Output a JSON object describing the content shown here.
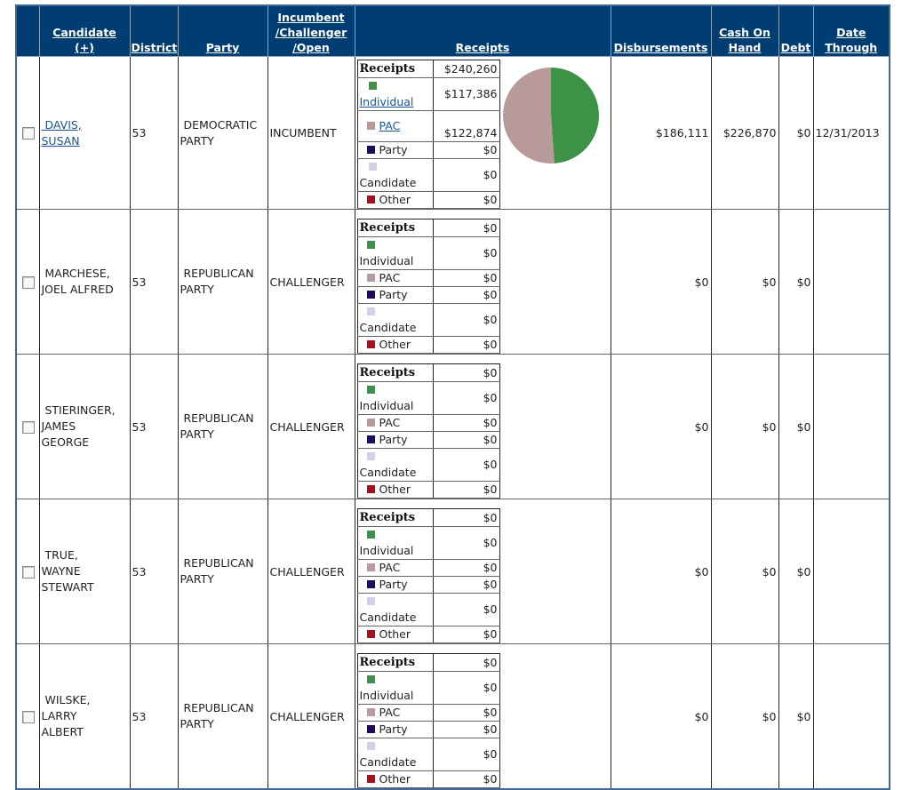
{
  "headers": {
    "select": "",
    "candidate": [
      "Candidate",
      "(+)"
    ],
    "district": "District",
    "party": "Party",
    "status": [
      "Incumbent",
      "/Challenger",
      "/Open"
    ],
    "receipts": "Receipts",
    "disbursements": "Disbursements",
    "cash_on_hand": [
      "Cash On",
      "Hand"
    ],
    "debt": "Debt",
    "date_through": [
      "Date",
      "Through"
    ]
  },
  "legend_colors": {
    "individual": "#3d9248",
    "pac": "#b89a9a",
    "party": "#1f0a5e",
    "candidate": "#d2d0e8",
    "other": "#a80e1c"
  },
  "rows": [
    {
      "name_line1": "DAVIS,",
      "name_line2": "SUSAN",
      "name_line3": "",
      "is_link": true,
      "district": "53",
      "party_line1": "DEMOCRATIC",
      "party_line2": "PARTY",
      "status": "INCUMBENT",
      "receipts_label": "Receipts",
      "receipts_total": "$240,260",
      "individual_label": "Individual",
      "individual": "$117,386",
      "pac_label": "PAC",
      "pac": "$122,874",
      "party_label": "Party",
      "party_amt": "$0",
      "candidate_label": "Candidate",
      "candidate_amt": "$0",
      "other_label": "Other",
      "other_amt": "$0",
      "disbursements": "$186,111",
      "cash_on_hand": "$226,870",
      "debt": "$0",
      "date_through": "12/31/2013",
      "pie": {
        "individual": 117386,
        "pac": 122874,
        "party": 0,
        "candidate": 0,
        "other": 0
      }
    },
    {
      "name_line1": "MARCHESE,",
      "name_line2": "JOEL ALFRED",
      "name_line3": "",
      "is_link": false,
      "district": "53",
      "party_line1": "REPUBLICAN",
      "party_line2": "PARTY",
      "status": "CHALLENGER",
      "receipts_label": "Receipts",
      "receipts_total": "$0",
      "individual_label": "Individual",
      "individual": "$0",
      "pac_label": "PAC",
      "pac": "$0",
      "party_label": "Party",
      "party_amt": "$0",
      "candidate_label": "Candidate",
      "candidate_amt": "$0",
      "other_label": "Other",
      "other_amt": "$0",
      "disbursements": "$0",
      "cash_on_hand": "$0",
      "debt": "$0",
      "date_through": ""
    },
    {
      "name_line1": "STIERINGER,",
      "name_line2": "JAMES",
      "name_line3": "GEORGE",
      "is_link": false,
      "district": "53",
      "party_line1": "REPUBLICAN",
      "party_line2": "PARTY",
      "status": "CHALLENGER",
      "receipts_label": "Receipts",
      "receipts_total": "$0",
      "individual_label": "Individual",
      "individual": "$0",
      "pac_label": "PAC",
      "pac": "$0",
      "party_label": "Party",
      "party_amt": "$0",
      "candidate_label": "Candidate",
      "candidate_amt": "$0",
      "other_label": "Other",
      "other_amt": "$0",
      "disbursements": "$0",
      "cash_on_hand": "$0",
      "debt": "$0",
      "date_through": ""
    },
    {
      "name_line1": "TRUE,",
      "name_line2": "WAYNE",
      "name_line3": "STEWART",
      "is_link": false,
      "district": "53",
      "party_line1": "REPUBLICAN",
      "party_line2": "PARTY",
      "status": "CHALLENGER",
      "receipts_label": "Receipts",
      "receipts_total": "$0",
      "individual_label": "Individual",
      "individual": "$0",
      "pac_label": "PAC",
      "pac": "$0",
      "party_label": "Party",
      "party_amt": "$0",
      "candidate_label": "Candidate",
      "candidate_amt": "$0",
      "other_label": "Other",
      "other_amt": "$0",
      "disbursements": "$0",
      "cash_on_hand": "$0",
      "debt": "$0",
      "date_through": ""
    },
    {
      "name_line1": "WILSKE,",
      "name_line2": "LARRY",
      "name_line3": "ALBERT",
      "is_link": false,
      "district": "53",
      "party_line1": "REPUBLICAN",
      "party_line2": "PARTY",
      "status": "CHALLENGER",
      "receipts_label": "Receipts",
      "receipts_total": "$0",
      "individual_label": "Individual",
      "individual": "$0",
      "pac_label": "PAC",
      "pac": "$0",
      "party_label": "Party",
      "party_amt": "$0",
      "candidate_label": "Candidate",
      "candidate_amt": "$0",
      "other_label": "Other",
      "other_amt": "$0",
      "disbursements": "$0",
      "cash_on_hand": "$0",
      "debt": "$0",
      "date_through": ""
    }
  ]
}
